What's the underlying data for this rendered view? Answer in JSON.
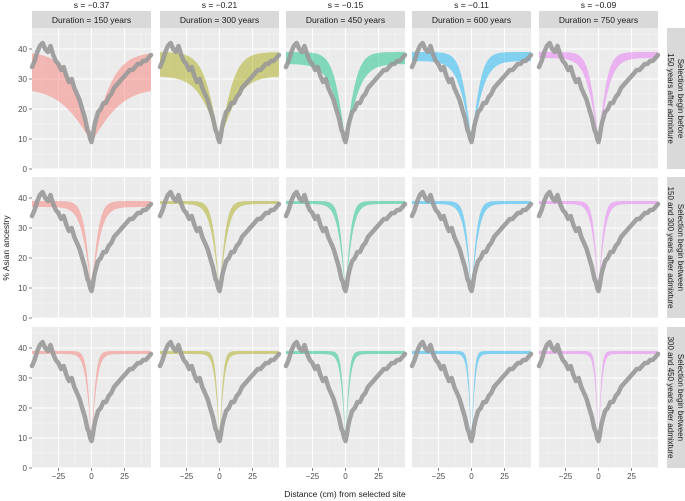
{
  "chart_data": {
    "type": "area",
    "layout": "facet-grid",
    "ylabel": "% Asian ancestry",
    "xlabel": "Distance (cm) from selected site",
    "xlim": [
      -45,
      45
    ],
    "ylim": [
      0,
      47
    ],
    "xticks": [
      -25,
      0,
      25
    ],
    "yticks": [
      0,
      10,
      20,
      30,
      40
    ],
    "column_headers": [
      "s = −0.37",
      "s = −0.21",
      "s = −0.15",
      "s = −0.11",
      "s = −0.09"
    ],
    "column_strips": [
      "Duration = 150  years",
      "Duration = 300  years",
      "Duration = 450  years",
      "Duration = 600  years",
      "Duration = 750  years"
    ],
    "row_strips": [
      [
        "Selection begin before",
        "150 years after admixture"
      ],
      [
        "Selection begin between",
        "150 and 300 years after admixture"
      ],
      [
        "Selection begin between",
        "300 and 450 years after admixture"
      ]
    ],
    "colors": [
      "#F8766D",
      "#A3A500",
      "#00BF7D",
      "#00B0F6",
      "#E76BF3"
    ],
    "observed_color": "#999999",
    "observed": {
      "x": [
        -45,
        -43,
        -41,
        -39,
        -37,
        -35,
        -33,
        -31,
        -29,
        -27,
        -25,
        -23,
        -21,
        -19,
        -17,
        -15,
        -13,
        -11,
        -9,
        -7,
        -5,
        -3,
        -2,
        -1,
        0,
        1,
        2,
        3,
        5,
        7,
        9,
        11,
        13,
        15,
        17,
        19,
        21,
        23,
        25,
        27,
        29,
        31,
        33,
        35,
        37,
        39,
        41,
        43,
        45
      ],
      "y": [
        34,
        36,
        39,
        41,
        42,
        40,
        39,
        41,
        38,
        36,
        35,
        33,
        34,
        31,
        29,
        30,
        27,
        25,
        23,
        20,
        17,
        13,
        12,
        10,
        9,
        11,
        14,
        16,
        19,
        20,
        22,
        22,
        24,
        25,
        27,
        28,
        29,
        30,
        31,
        32,
        33,
        33,
        34,
        35,
        35,
        36,
        36,
        37,
        38
      ]
    },
    "bands": [
      [
        {
          "lower_edge": 27,
          "upper_edge": 39,
          "halfwidth_cm": 30
        },
        {
          "lower_edge": 31,
          "upper_edge": 39,
          "halfwidth_cm": 20
        },
        {
          "lower_edge": 35,
          "upper_edge": 39,
          "halfwidth_cm": 15
        },
        {
          "lower_edge": 36,
          "upper_edge": 39,
          "halfwidth_cm": 13
        },
        {
          "lower_edge": 37,
          "upper_edge": 39,
          "halfwidth_cm": 12
        }
      ],
      [
        {
          "lower_edge": 37,
          "upper_edge": 39,
          "halfwidth_cm": 10
        },
        {
          "lower_edge": 38,
          "upper_edge": 39,
          "halfwidth_cm": 9
        },
        {
          "lower_edge": 38,
          "upper_edge": 39,
          "halfwidth_cm": 8
        },
        {
          "lower_edge": 38,
          "upper_edge": 39,
          "halfwidth_cm": 8
        },
        {
          "lower_edge": 38,
          "upper_edge": 39,
          "halfwidth_cm": 7
        }
      ],
      [
        {
          "lower_edge": 38,
          "upper_edge": 39,
          "halfwidth_cm": 6
        },
        {
          "lower_edge": 38,
          "upper_edge": 39,
          "halfwidth_cm": 5
        },
        {
          "lower_edge": 38,
          "upper_edge": 39,
          "halfwidth_cm": 5
        },
        {
          "lower_edge": 38,
          "upper_edge": 39,
          "halfwidth_cm": 4
        },
        {
          "lower_edge": 38,
          "upper_edge": 39,
          "halfwidth_cm": 4
        }
      ]
    ],
    "center_value": 9
  }
}
